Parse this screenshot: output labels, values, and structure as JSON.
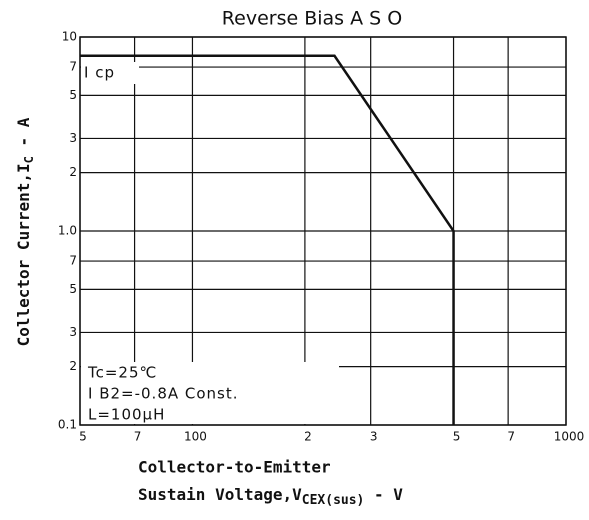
{
  "chart_data": {
    "type": "line",
    "title": "Reverse Bias A S O",
    "xlabel": [
      "Collector-to-Emitter",
      "Sustain Voltage,V",
      "CEX(sus)",
      " - V"
    ],
    "ylabel": [
      "Collector Current,I",
      "C",
      " - A"
    ],
    "annotations": [
      "I cp",
      "Tc=25℃",
      "I B2=-0.8A Const.",
      "L=100μH"
    ],
    "xscale": "log",
    "yscale": "log",
    "grid": true,
    "x": [
      50,
      240,
      500,
      500
    ],
    "series": [
      {
        "color": "#111111",
        "values": [
          8,
          8,
          1,
          0.1
        ]
      }
    ],
    "xlim": [
      50,
      1000
    ],
    "xticks": [
      {
        "value": 50,
        "label": "5"
      },
      {
        "value": 70,
        "label": "7"
      },
      100,
      {
        "value": 200,
        "label": "2"
      },
      {
        "value": 300,
        "label": "3"
      },
      {
        "value": 500,
        "label": "5"
      },
      {
        "value": 700,
        "label": "7"
      },
      1000
    ],
    "ylim": [
      0.1,
      10
    ],
    "yticks": [
      0.1,
      {
        "value": 0.2,
        "label": "2"
      },
      {
        "value": 0.3,
        "label": "3"
      },
      {
        "value": 0.5,
        "label": "5"
      },
      {
        "value": 0.7,
        "label": "7"
      },
      {
        "value": 1,
        "label": "1.0"
      },
      {
        "value": 2,
        "label": "2"
      },
      {
        "value": 3,
        "label": "3"
      },
      {
        "value": 5,
        "label": "5"
      },
      {
        "value": 7,
        "label": "7"
      },
      10
    ]
  }
}
